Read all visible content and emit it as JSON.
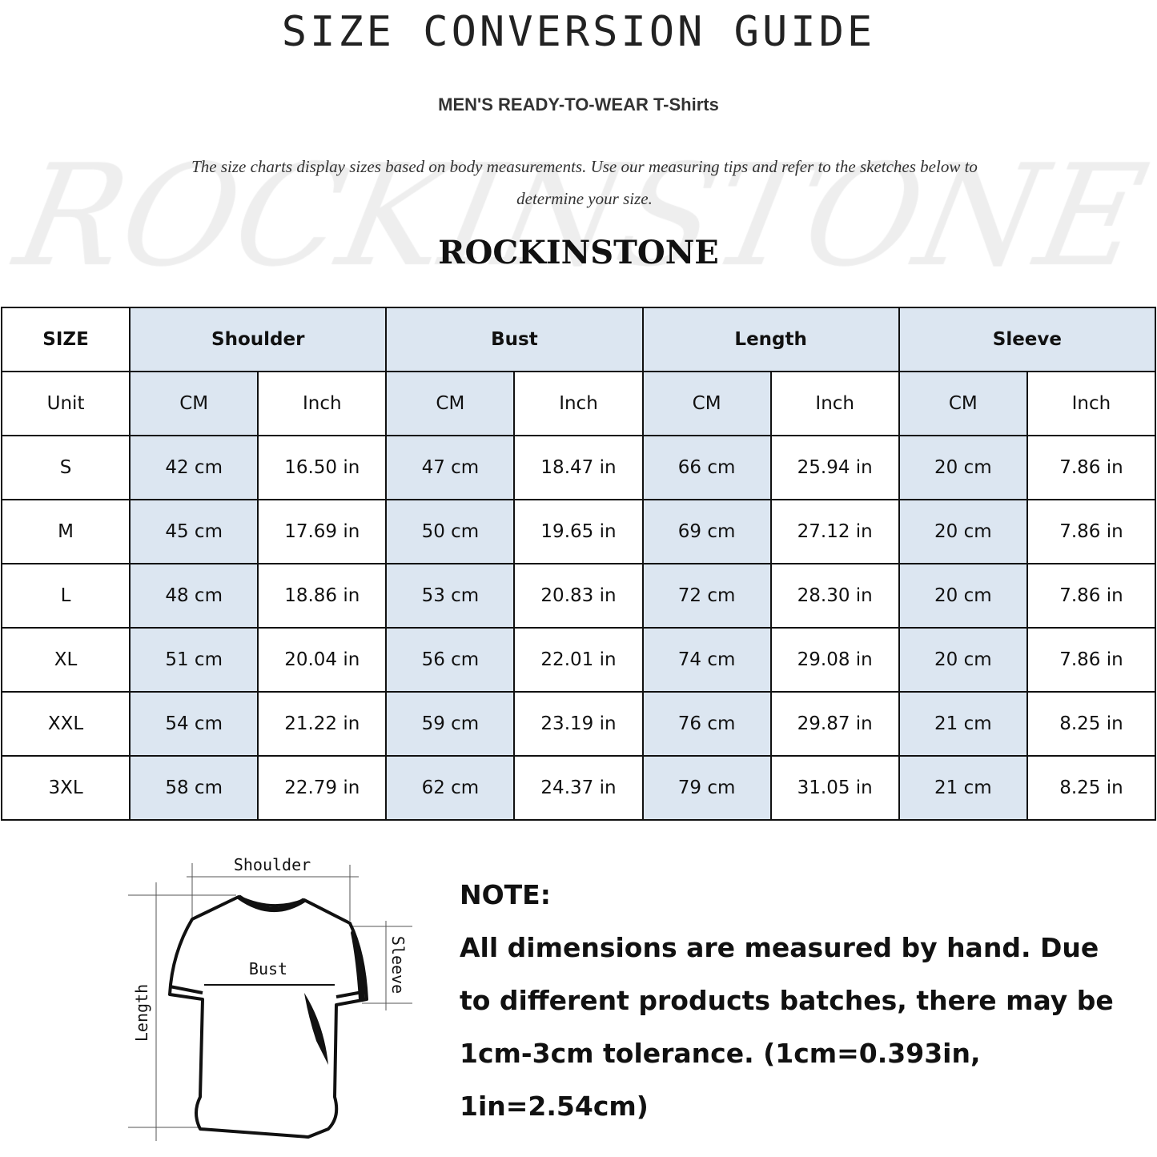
{
  "title": "SIZE CONVERSION GUIDE",
  "subtitle": "MEN'S READY-TO-WEAR T-Shirts",
  "description": "The size charts display sizes based on body measurements. Use our measuring tips and refer to the sketches below to determine your size.",
  "watermark": "ROCKINSTONE",
  "brand": "ROCKINSTONE",
  "table": {
    "size_header": "SIZE",
    "groups": [
      "Shoulder",
      "Bust",
      "Length",
      "Sleeve"
    ],
    "unit_label": "Unit",
    "units": [
      "CM",
      "Inch",
      "CM",
      "Inch",
      "CM",
      "Inch",
      "CM",
      "Inch"
    ],
    "rows": [
      {
        "size": "S",
        "values": [
          "42 cm",
          "16.50 in",
          "47 cm",
          "18.47  in",
          "66 cm",
          "25.94  in",
          "20 cm",
          "7.86  in"
        ]
      },
      {
        "size": "M",
        "values": [
          "45 cm",
          "17.69  in",
          "50 cm",
          "19.65  in",
          "69 cm",
          "27.12  in",
          "20 cm",
          "7.86  in"
        ]
      },
      {
        "size": "L",
        "values": [
          "48 cm",
          "18.86  in",
          "53 cm",
          "20.83  in",
          "72 cm",
          "28.30  in",
          "20 cm",
          "7.86  in"
        ]
      },
      {
        "size": "XL",
        "values": [
          "51 cm",
          "20.04  in",
          "56 cm",
          "22.01  in",
          "74 cm",
          "29.08  in",
          "20 cm",
          "7.86  in"
        ]
      },
      {
        "size": "XXL",
        "values": [
          "54 cm",
          "21.22  in",
          "59 cm",
          "23.19  in",
          "76 cm",
          "29.87  in",
          "21 cm",
          "8.25  in"
        ]
      },
      {
        "size": "3XL",
        "values": [
          "58 cm",
          "22.79  in",
          "62 cm",
          "24.37  in",
          "79 cm",
          "31.05  in",
          "21 cm",
          "8.25  in"
        ]
      }
    ]
  },
  "sketch": {
    "shoulder": "Shoulder",
    "bust": "Bust",
    "sleeve": "Sleeve",
    "length": "Length"
  },
  "note": {
    "heading": "NOTE:",
    "text": "All dimensions are measured by hand. Due to different products batches, there may be 1cm-3cm tolerance. (1cm=0.393in, 1in=2.54cm)"
  },
  "colors": {
    "highlight": "#dce6f1",
    "border": "#111111"
  }
}
